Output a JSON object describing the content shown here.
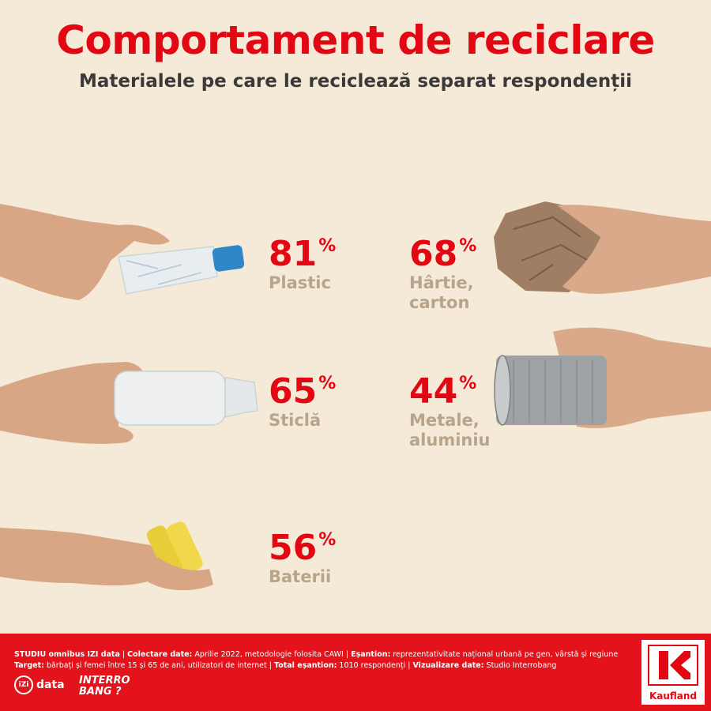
{
  "header": {
    "title": "Comportament de reciclare",
    "subtitle": "Materialele pe care le reciclează separat respondenții"
  },
  "colors": {
    "accent": "#e30613",
    "label": "#b7a48a",
    "background": "#f5ead8",
    "footer": "#e4121a"
  },
  "chart_data": {
    "type": "table",
    "title": "Comportament de reciclare",
    "subtitle": "Materialele pe care le reciclează separat respondenții",
    "unit": "%",
    "categories": [
      "Plastic",
      "Hârtie, carton",
      "Sticlă",
      "Metale, aluminiu",
      "Baterii"
    ],
    "values": [
      81,
      68,
      65,
      44,
      56
    ]
  },
  "stats": [
    {
      "value": "81",
      "pct": "%",
      "label": "Plastic",
      "icon": "plastic-bottle-icon"
    },
    {
      "value": "68",
      "pct": "%",
      "label": "Hârtie, carton",
      "icon": "crumpled-paper-icon"
    },
    {
      "value": "65",
      "pct": "%",
      "label": "Sticlă",
      "icon": "glass-bottle-icon"
    },
    {
      "value": "44",
      "pct": "%",
      "label": "Metale, aluminiu",
      "icon": "tin-can-icon"
    },
    {
      "value": "56",
      "pct": "%",
      "label": "Baterii",
      "icon": "batteries-icon"
    }
  ],
  "footer": {
    "s1_label": "STUDIU omnibus IZI data",
    "s1_sep": " | ",
    "s2_label": "Colectare date:",
    "s2_value": " Aprilie 2022, metodologie folosita CAWI",
    "s2_sep": " | ",
    "s3_label": "Eșantion:",
    "s3_value": " reprezentativitate național urbană pe gen, vârstă și regiune",
    "s4_label": "Target:",
    "s4_value": " bărbați și femei între 15 și 65 de ani, utilizatori de internet",
    "s4_sep": " | ",
    "s5_label": "Total eșantion:",
    "s5_value": " 1010 respondenți",
    "s5_sep": " | ",
    "s6_label": "Vizualizare date:",
    "s6_value": " Studio Interrobang",
    "logo_izi_a": "iZi",
    "logo_izi_b": "data",
    "logo_interro_a": "INTERRO",
    "logo_interro_b": "BANG ?",
    "brand": "Kaufland"
  }
}
